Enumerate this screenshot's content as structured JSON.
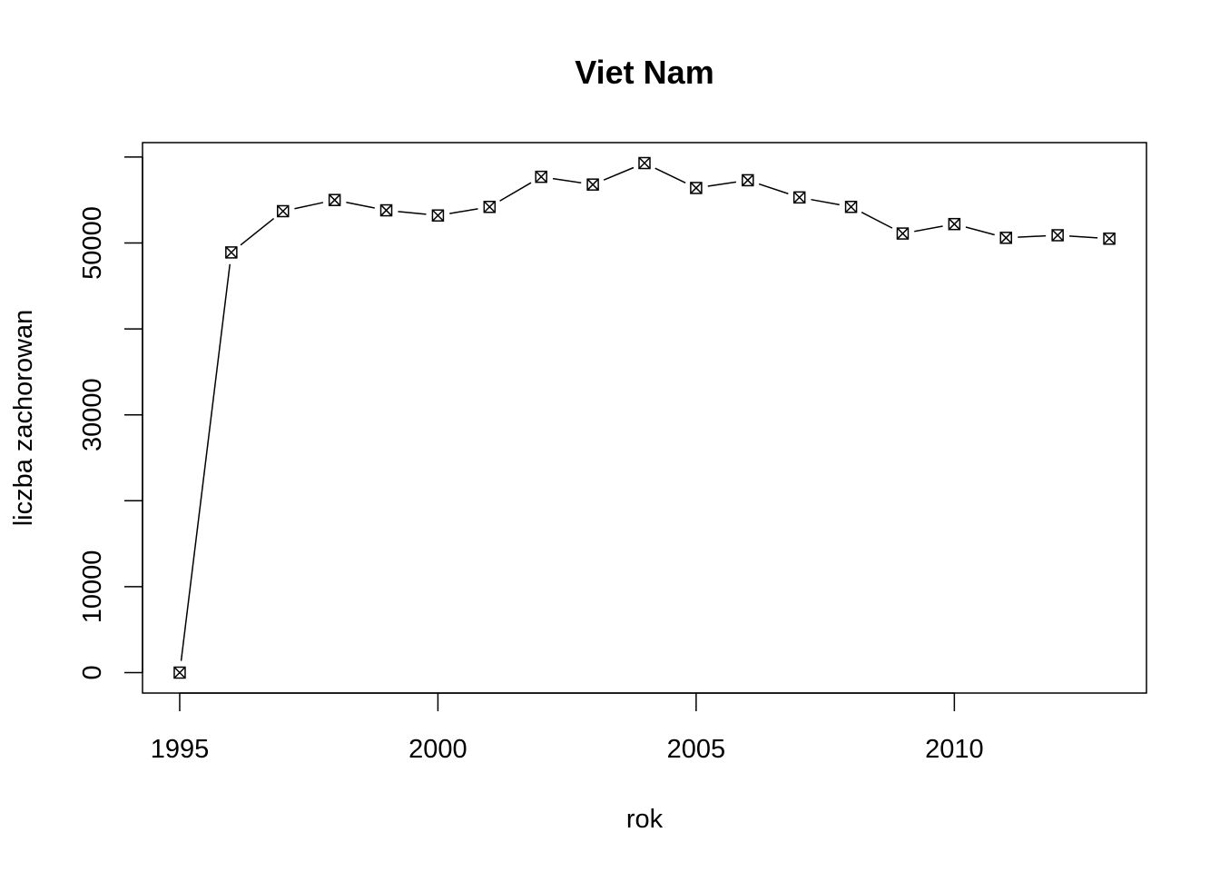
{
  "chart_data": {
    "type": "line",
    "title": "Viet Nam",
    "xlabel": "rok",
    "ylabel": "liczba zachorowan",
    "x": [
      1995,
      1996,
      1997,
      1998,
      1999,
      2000,
      2001,
      2002,
      2003,
      2004,
      2005,
      2006,
      2007,
      2008,
      2009,
      2010,
      2011,
      2012,
      2013
    ],
    "series": [
      {
        "values": [
          0,
          48900,
          53700,
          55000,
          53800,
          53200,
          54200,
          57700,
          56800,
          59300,
          56400,
          57300,
          55300,
          54200,
          51100,
          52200,
          50600,
          50900,
          50500
        ]
      }
    ],
    "xticks": [
      1995,
      2000,
      2005,
      2010
    ],
    "xtick_labels": [
      "1995",
      "2000",
      "2005",
      "2010"
    ],
    "yticks": [
      0,
      10000,
      20000,
      30000,
      40000,
      50000,
      60000
    ],
    "ytick_labels": [
      "0",
      "10000",
      "",
      "30000",
      "",
      "50000",
      ""
    ],
    "xlim": [
      1994.28,
      2013.72
    ],
    "ylim": [
      -2380,
      61680
    ],
    "line_style": "dashed with gaps around point markers",
    "marker": "square with x",
    "grid": false,
    "legend": "none",
    "colors": {
      "line": "#000000",
      "background": "#ffffff"
    }
  }
}
